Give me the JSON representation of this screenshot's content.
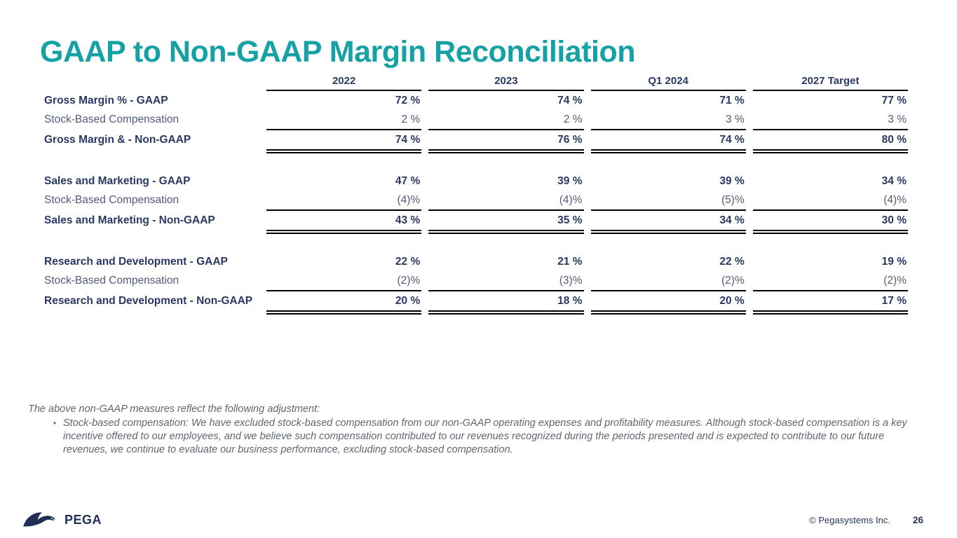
{
  "slide": {
    "title": "GAAP to Non-GAAP Margin Reconciliation",
    "logo_text": "PEGA",
    "copyright": "© Pegasystems Inc.",
    "page_number": "26"
  },
  "colors": {
    "accent_teal": "#16A2A5",
    "navy_text": "#2A3963",
    "light_row_text": "#505C77",
    "rule_line": "#000000",
    "footnote_gray": "#5F6672"
  },
  "table": {
    "columns": [
      "2022",
      "2023",
      "Q1 2024",
      "2027 Target"
    ],
    "groups": [
      {
        "rows": [
          {
            "label": "Gross Margin % - GAAP",
            "bold": true,
            "rule": "none",
            "values": [
              "72 %",
              "74 %",
              "71 %",
              "77 %"
            ]
          },
          {
            "label": "Stock-Based Compensation",
            "bold": false,
            "rule": "single",
            "values": [
              "2 %",
              "2 %",
              "3 %",
              "3 %"
            ]
          },
          {
            "label": "Gross Margin & - Non-GAAP",
            "bold": true,
            "rule": "double",
            "values": [
              "74 %",
              "76 %",
              "74 %",
              "80 %"
            ]
          }
        ]
      },
      {
        "rows": [
          {
            "label": "Sales and Marketing - GAAP",
            "bold": true,
            "rule": "none",
            "values": [
              "47 %",
              "39 %",
              "39 %",
              "34 %"
            ]
          },
          {
            "label": "Stock-Based Compensation",
            "bold": false,
            "rule": "single",
            "values": [
              "(4)%",
              "(4)%",
              "(5)%",
              "(4)%"
            ]
          },
          {
            "label": "Sales and Marketing - Non-GAAP",
            "bold": true,
            "rule": "double",
            "values": [
              "43 %",
              "35 %",
              "34 %",
              "30 %"
            ]
          }
        ]
      },
      {
        "rows": [
          {
            "label": "Research and Development - GAAP",
            "bold": true,
            "rule": "none",
            "values": [
              "22 %",
              "21 %",
              "22 %",
              "19 %"
            ]
          },
          {
            "label": "Stock-Based Compensation",
            "bold": false,
            "rule": "single",
            "values": [
              "(2)%",
              "(3)%",
              "(2)%",
              "(2)%"
            ]
          },
          {
            "label": "Research and Development - Non-GAAP",
            "bold": true,
            "rule": "double",
            "values": [
              "20 %",
              "18 %",
              "20 %",
              "17 %"
            ]
          }
        ]
      }
    ]
  },
  "footnote": {
    "intro": "The above non-GAAP measures reflect the following adjustment:",
    "bullet_marker": "•",
    "bullet": "Stock-based compensation: We have excluded stock-based compensation from our non-GAAP operating expenses and profitability measures. Although stock-based compensation is a key incentive offered to our employees, and we believe such compensation contributed to our revenues recognized during the periods presented and is expected to contribute to our future revenues, we continue to evaluate our business performance, excluding stock-based compensation."
  }
}
